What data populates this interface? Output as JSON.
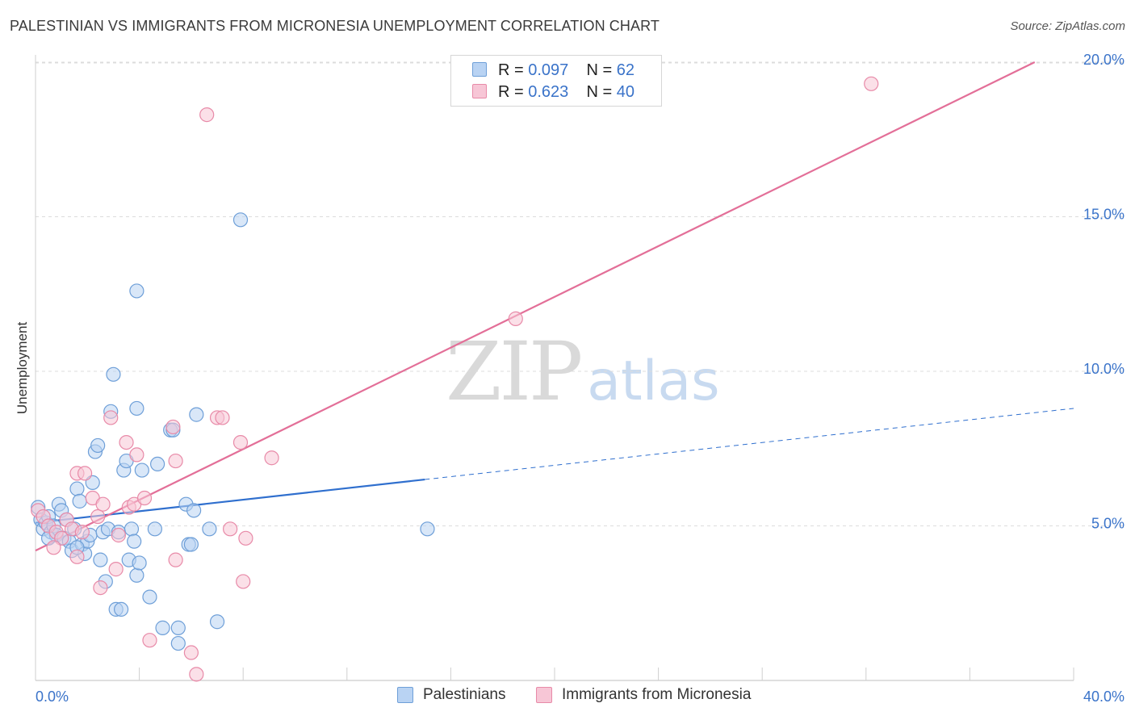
{
  "header": {
    "title": "PALESTINIAN VS IMMIGRANTS FROM MICRONESIA UNEMPLOYMENT CORRELATION CHART",
    "source": "Source: ZipAtlas.com"
  },
  "watermark": {
    "zip": "ZIP",
    "atlas": "atlas"
  },
  "legend": {
    "r_label": "R =",
    "n_label": "N =",
    "series": [
      {
        "name": "Palestinians",
        "r": "0.097",
        "n": "62",
        "fill": "#b9d3f3",
        "stroke": "#6e9fd8"
      },
      {
        "name": "Immigrants from Micronesia",
        "r": "0.623",
        "n": "40",
        "fill": "#f7c6d6",
        "stroke": "#e88aa8"
      }
    ]
  },
  "chart_data": {
    "type": "scatter",
    "title": "PALESTINIAN VS IMMIGRANTS FROM MICRONESIA UNEMPLOYMENT CORRELATION CHART",
    "xlabel": "",
    "ylabel": "Unemployment",
    "xlim": [
      0,
      40
    ],
    "ylim": [
      0,
      20.5
    ],
    "x_tick_labels": [
      "0.0%",
      "40.0%"
    ],
    "y_ticks": [
      5,
      10,
      15,
      20
    ],
    "y_tick_labels": [
      "5.0%",
      "10.0%",
      "15.0%",
      "20.0%"
    ],
    "grid": true,
    "series": [
      {
        "name": "Palestinians",
        "color": "#6e9fd8",
        "fill": "#b9d3f3",
        "trend": {
          "x": [
            0,
            15
          ],
          "y": [
            5.1,
            6.5
          ],
          "dashed_extension_to_x": 40,
          "dashed_end_y": 8.8,
          "color": "#2f6fce"
        },
        "points": [
          [
            0.1,
            5.6
          ],
          [
            0.2,
            5.2
          ],
          [
            0.3,
            4.9
          ],
          [
            0.4,
            5.1
          ],
          [
            0.5,
            5.3
          ],
          [
            0.6,
            4.8
          ],
          [
            0.7,
            5.0
          ],
          [
            0.8,
            4.7
          ],
          [
            0.9,
            5.7
          ],
          [
            1.0,
            5.5
          ],
          [
            1.1,
            4.6
          ],
          [
            1.2,
            5.2
          ],
          [
            1.3,
            4.5
          ],
          [
            1.4,
            4.2
          ],
          [
            1.5,
            4.9
          ],
          [
            1.6,
            6.2
          ],
          [
            1.7,
            5.8
          ],
          [
            1.8,
            4.4
          ],
          [
            1.9,
            4.1
          ],
          [
            2.0,
            4.5
          ],
          [
            2.1,
            4.7
          ],
          [
            2.2,
            6.4
          ],
          [
            2.3,
            7.4
          ],
          [
            2.4,
            7.6
          ],
          [
            2.5,
            3.9
          ],
          [
            2.6,
            4.8
          ],
          [
            2.7,
            3.2
          ],
          [
            2.8,
            4.9
          ],
          [
            2.9,
            8.7
          ],
          [
            3.0,
            9.9
          ],
          [
            3.1,
            2.3
          ],
          [
            3.2,
            4.8
          ],
          [
            3.3,
            2.3
          ],
          [
            3.4,
            6.8
          ],
          [
            3.5,
            7.1
          ],
          [
            3.6,
            3.9
          ],
          [
            3.7,
            4.9
          ],
          [
            3.8,
            4.5
          ],
          [
            3.9,
            3.4
          ],
          [
            4.0,
            3.8
          ],
          [
            3.9,
            12.6
          ],
          [
            3.9,
            8.8
          ],
          [
            4.1,
            6.8
          ],
          [
            4.4,
            2.7
          ],
          [
            4.6,
            4.9
          ],
          [
            4.7,
            7.0
          ],
          [
            4.9,
            1.7
          ],
          [
            5.2,
            8.1
          ],
          [
            5.3,
            8.1
          ],
          [
            5.5,
            1.2
          ],
          [
            5.5,
            1.7
          ],
          [
            5.8,
            5.7
          ],
          [
            5.9,
            4.4
          ],
          [
            6.0,
            4.4
          ],
          [
            6.1,
            5.5
          ],
          [
            6.2,
            8.6
          ],
          [
            6.7,
            4.9
          ],
          [
            7.0,
            1.9
          ],
          [
            7.9,
            14.9
          ],
          [
            15.1,
            4.9
          ],
          [
            0.5,
            4.6
          ],
          [
            1.6,
            4.3
          ]
        ]
      },
      {
        "name": "Immigrants from Micronesia",
        "color": "#e88aa8",
        "fill": "#f7c6d6",
        "trend": {
          "x": [
            0,
            38.5
          ],
          "y": [
            4.2,
            20.0
          ],
          "color": "#e36f98"
        },
        "points": [
          [
            0.1,
            5.5
          ],
          [
            0.3,
            5.3
          ],
          [
            0.5,
            5.0
          ],
          [
            0.8,
            4.8
          ],
          [
            1.0,
            4.6
          ],
          [
            1.2,
            5.2
          ],
          [
            1.4,
            4.9
          ],
          [
            1.6,
            4.0
          ],
          [
            1.6,
            6.7
          ],
          [
            1.8,
            4.8
          ],
          [
            1.9,
            6.7
          ],
          [
            2.2,
            5.9
          ],
          [
            2.4,
            5.3
          ],
          [
            2.5,
            3.0
          ],
          [
            2.6,
            5.7
          ],
          [
            2.9,
            8.5
          ],
          [
            3.1,
            3.6
          ],
          [
            3.2,
            4.7
          ],
          [
            3.5,
            7.7
          ],
          [
            3.6,
            5.6
          ],
          [
            3.8,
            5.7
          ],
          [
            3.9,
            7.3
          ],
          [
            4.2,
            5.9
          ],
          [
            4.4,
            1.3
          ],
          [
            5.3,
            8.2
          ],
          [
            5.4,
            7.1
          ],
          [
            5.4,
            3.9
          ],
          [
            6.0,
            0.9
          ],
          [
            6.2,
            0.2
          ],
          [
            6.6,
            18.3
          ],
          [
            7.0,
            8.5
          ],
          [
            7.2,
            8.5
          ],
          [
            7.5,
            4.9
          ],
          [
            7.9,
            7.7
          ],
          [
            8.0,
            3.2
          ],
          [
            8.1,
            4.6
          ],
          [
            9.1,
            7.2
          ],
          [
            18.5,
            11.7
          ],
          [
            32.2,
            19.3
          ],
          [
            0.7,
            4.3
          ]
        ]
      }
    ]
  }
}
